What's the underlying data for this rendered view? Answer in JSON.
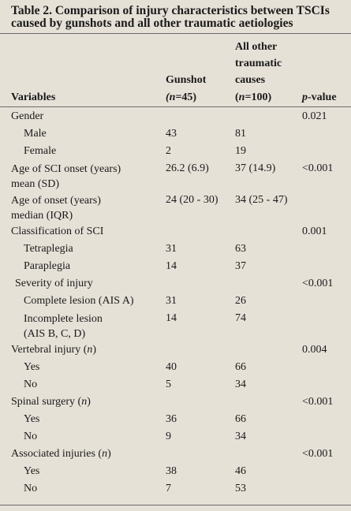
{
  "caption": {
    "line1": "Table 2. Comparison of injury characteristics between TSCIs",
    "line2": "caused by gunshots and all other traumatic aetiologies"
  },
  "header": {
    "variables": "Variables",
    "gunshot": "Gunshot",
    "gunshot_n": "(n=45)",
    "other_l1": "All other",
    "other_l2": "traumatic",
    "other_l3": "causes",
    "other_n": "(n=100)",
    "pvalue": "p-value"
  },
  "rows": [
    {
      "label": "Gender",
      "g": "",
      "o": "",
      "p": "0.021"
    },
    {
      "label": "Male",
      "g": "43",
      "o": "81",
      "p": ""
    },
    {
      "label": "Female",
      "g": "2",
      "o": "19",
      "p": ""
    },
    {
      "label1": "Age of SCI onset (years)",
      "label2": "mean (SD)",
      "g": "26.2 (6.9)",
      "o": "37 (14.9)",
      "p": "<0.001"
    },
    {
      "label1": "Age of onset (years)",
      "label2": "median (IQR)",
      "g": "24 (20 - 30)",
      "o": "34 (25 - 47)",
      "p": ""
    },
    {
      "label": "Classification of SCI",
      "g": "",
      "o": "",
      "p": "0.001"
    },
    {
      "label": "Tetraplegia",
      "g": "31",
      "o": "63",
      "p": ""
    },
    {
      "label": "Paraplegia",
      "g": "14",
      "o": "37",
      "p": ""
    },
    {
      "label": "Severity of injury",
      "g": "",
      "o": "",
      "p": "<0.001"
    },
    {
      "label": "Complete lesion (AIS A)",
      "g": "31",
      "o": "26",
      "p": ""
    },
    {
      "label1": "Incomplete lesion",
      "label2": "(AIS B, C, D)",
      "g": "14",
      "o": "74",
      "p": ""
    },
    {
      "label": "Vertebral injury (n)",
      "g": "",
      "o": "",
      "p": "0.004"
    },
    {
      "label": "Yes",
      "g": "40",
      "o": "66",
      "p": ""
    },
    {
      "label": "No",
      "g": "5",
      "o": "34",
      "p": ""
    },
    {
      "label": "Spinal surgery (n)",
      "g": "",
      "o": "",
      "p": "<0.001"
    },
    {
      "label": "Yes",
      "g": "36",
      "o": "66",
      "p": ""
    },
    {
      "label": "No",
      "g": "9",
      "o": "34",
      "p": ""
    },
    {
      "label": "Associated injuries (n)",
      "g": "",
      "o": "",
      "p": "<0.001"
    },
    {
      "label": "Yes",
      "g": "38",
      "o": "46",
      "p": ""
    },
    {
      "label": "No",
      "g": "7",
      "o": "53",
      "p": ""
    }
  ]
}
